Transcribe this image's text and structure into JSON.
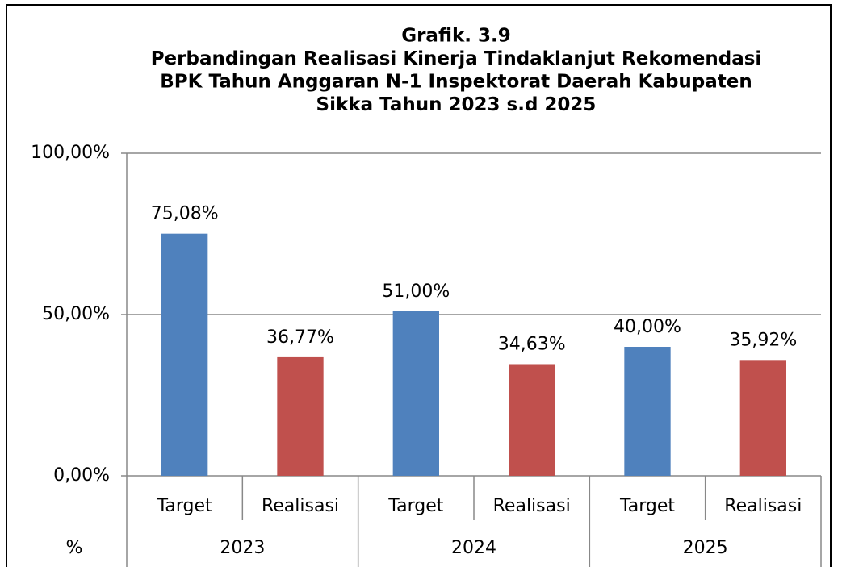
{
  "chart_data": {
    "type": "bar",
    "title": [
      "Grafik. 3.9",
      "Perbandingan Realisasi Kinerja Tindaklanjut Rekomendasi",
      "BPK Tahun Anggaran N-1 Inspektorat Daerah Kabupaten",
      "Sikka Tahun 2023 s.d 2025"
    ],
    "y_label": "%",
    "categories": [
      "Target",
      "Realisasi",
      "Target",
      "Realisasi",
      "Target",
      "Realisasi"
    ],
    "groups": [
      "2023",
      "2024",
      "2025"
    ],
    "values": [
      75.08,
      36.77,
      51,
      34.63,
      40,
      35.92
    ],
    "value_labels": [
      "75,08%",
      "36,77%",
      "51,00%",
      "34,63%",
      "40,00%",
      "35,92%"
    ],
    "colors": [
      "#4f81bd",
      "#c0504d",
      "#4f81bd",
      "#c0504d",
      "#4f81bd",
      "#c0504d"
    ],
    "ylim": [
      0,
      100
    ],
    "yticks": [
      {
        "value": 0,
        "label": "0,00%"
      },
      {
        "value": 50,
        "label": "50,00%"
      },
      {
        "value": 100,
        "label": "100,00%"
      }
    ],
    "grid": true
  }
}
